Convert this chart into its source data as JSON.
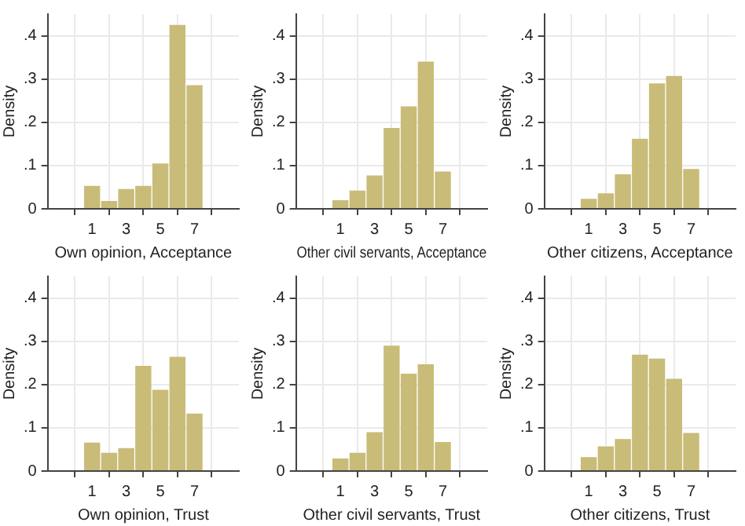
{
  "chart_data": [
    {
      "type": "histogram",
      "xlabel": "Own opinion, Acceptance",
      "ylabel": "Density",
      "bins": [
        0.5,
        1.5,
        2.5,
        3.5,
        4.5,
        5.5,
        6.5,
        7.5
      ],
      "values": [
        0.053,
        0.018,
        0.046,
        0.053,
        0.105,
        0.425,
        0.286
      ],
      "color": "#c8bc78",
      "xlim": [
        -0.2,
        8.2
      ],
      "xticks": [
        1,
        3,
        5,
        7
      ],
      "ylim": [
        0,
        0.45
      ],
      "yticks": [
        {
          "value": 0,
          "label": "0"
        },
        {
          "value": 0.1,
          "label": ".1"
        },
        {
          "value": 0.2,
          "label": ".2"
        },
        {
          "value": 0.3,
          "label": ".3"
        },
        {
          "value": 0.4,
          "label": ".4"
        }
      ],
      "grid": true
    },
    {
      "type": "histogram",
      "xlabel": "Other civil servants, Acceptance",
      "ylabel": "Density",
      "bins": [
        0.5,
        1.5,
        2.5,
        3.5,
        4.5,
        5.5,
        6.5,
        7.5
      ],
      "values": [
        0.02,
        0.042,
        0.077,
        0.187,
        0.237,
        0.34,
        0.086
      ],
      "color": "#c8bc78",
      "xlim": [
        -0.2,
        8.2
      ],
      "xticks": [
        1,
        3,
        5,
        7
      ],
      "ylim": [
        0,
        0.45
      ],
      "yticks": [
        {
          "value": 0,
          "label": "0"
        },
        {
          "value": 0.1,
          "label": ".1"
        },
        {
          "value": 0.2,
          "label": ".2"
        },
        {
          "value": 0.3,
          "label": ".3"
        },
        {
          "value": 0.4,
          "label": ".4"
        }
      ],
      "grid": true
    },
    {
      "type": "histogram",
      "xlabel": "Other citizens, Acceptance",
      "ylabel": "Density",
      "bins": [
        0.5,
        1.5,
        2.5,
        3.5,
        4.5,
        5.5,
        6.5,
        7.5
      ],
      "values": [
        0.023,
        0.036,
        0.08,
        0.162,
        0.29,
        0.307,
        0.092
      ],
      "color": "#c8bc78",
      "xlim": [
        -0.2,
        8.2
      ],
      "xticks": [
        1,
        3,
        5,
        7
      ],
      "ylim": [
        0,
        0.45
      ],
      "yticks": [
        {
          "value": 0,
          "label": "0"
        },
        {
          "value": 0.1,
          "label": ".1"
        },
        {
          "value": 0.2,
          "label": ".2"
        },
        {
          "value": 0.3,
          "label": ".3"
        },
        {
          "value": 0.4,
          "label": ".4"
        }
      ],
      "grid": true
    },
    {
      "type": "histogram",
      "xlabel": "Own opinion, Trust",
      "ylabel": "Density",
      "bins": [
        0.5,
        1.5,
        2.5,
        3.5,
        4.5,
        5.5,
        6.5,
        7.5
      ],
      "values": [
        0.066,
        0.042,
        0.053,
        0.243,
        0.188,
        0.264,
        0.133
      ],
      "color": "#c8bc78",
      "xlim": [
        -0.2,
        8.2
      ],
      "xticks": [
        1,
        3,
        5,
        7
      ],
      "ylim": [
        0,
        0.45
      ],
      "yticks": [
        {
          "value": 0,
          "label": "0"
        },
        {
          "value": 0.1,
          "label": ".1"
        },
        {
          "value": 0.2,
          "label": ".2"
        },
        {
          "value": 0.3,
          "label": ".3"
        },
        {
          "value": 0.4,
          "label": ".4"
        }
      ],
      "grid": true
    },
    {
      "type": "histogram",
      "xlabel": "Other civil servants, Trust",
      "ylabel": "Density",
      "bins": [
        0.5,
        1.5,
        2.5,
        3.5,
        4.5,
        5.5,
        6.5,
        7.5
      ],
      "values": [
        0.029,
        0.042,
        0.09,
        0.29,
        0.225,
        0.247,
        0.067
      ],
      "color": "#c8bc78",
      "xlim": [
        -0.2,
        8.2
      ],
      "xticks": [
        1,
        3,
        5,
        7
      ],
      "ylim": [
        0,
        0.45
      ],
      "yticks": [
        {
          "value": 0,
          "label": "0"
        },
        {
          "value": 0.1,
          "label": ".1"
        },
        {
          "value": 0.2,
          "label": ".2"
        },
        {
          "value": 0.3,
          "label": ".3"
        },
        {
          "value": 0.4,
          "label": ".4"
        }
      ],
      "grid": true
    },
    {
      "type": "histogram",
      "xlabel": "Other citizens, Trust",
      "ylabel": "Density",
      "bins": [
        0.5,
        1.5,
        2.5,
        3.5,
        4.5,
        5.5,
        6.5,
        7.5
      ],
      "values": [
        0.032,
        0.057,
        0.074,
        0.269,
        0.26,
        0.213,
        0.088
      ],
      "color": "#c8bc78",
      "xlim": [
        -0.2,
        8.2
      ],
      "xticks": [
        1,
        3,
        5,
        7
      ],
      "ylim": [
        0,
        0.45
      ],
      "yticks": [
        {
          "value": 0,
          "label": "0"
        },
        {
          "value": 0.1,
          "label": ".1"
        },
        {
          "value": 0.2,
          "label": ".2"
        },
        {
          "value": 0.3,
          "label": ".3"
        },
        {
          "value": 0.4,
          "label": ".4"
        }
      ],
      "grid": true
    }
  ]
}
